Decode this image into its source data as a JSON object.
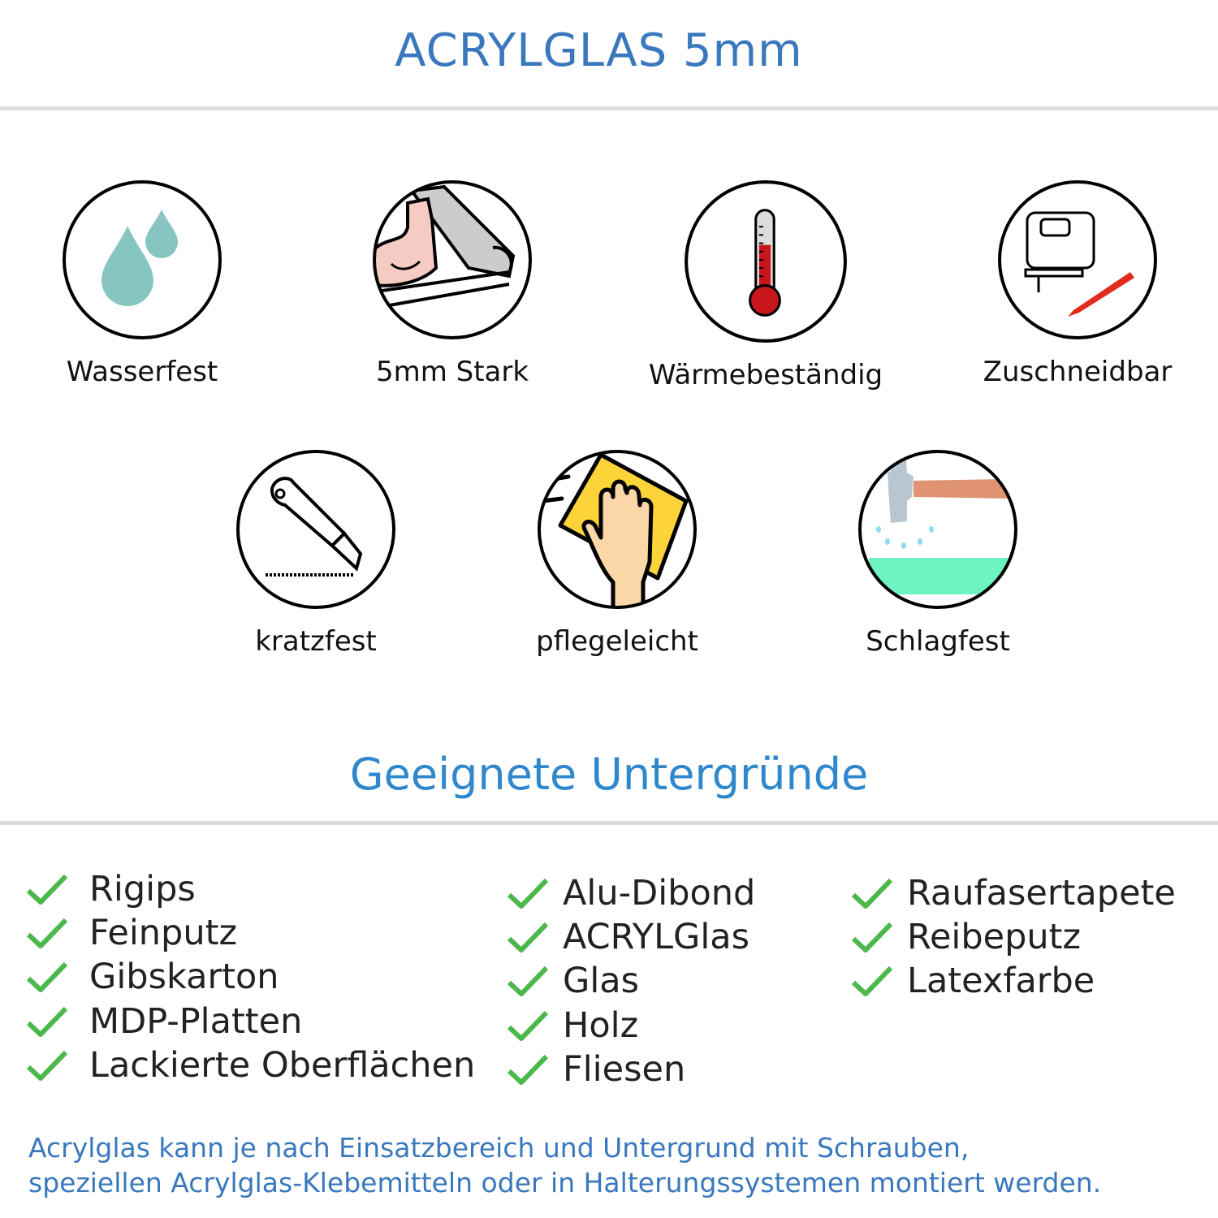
{
  "header": {
    "title": "ACRYLGLAS 5mm"
  },
  "features": [
    {
      "label": "Wasserfest",
      "icon": "water-drops-icon"
    },
    {
      "label": "5mm Stark",
      "icon": "strong-arm-icon"
    },
    {
      "label": "Wärmebeständig",
      "icon": "thermometer-icon"
    },
    {
      "label": "Zuschneidbar",
      "icon": "jigsaw-cutter-icon"
    },
    {
      "label": "kratzfest",
      "icon": "utility-knife-icon"
    },
    {
      "label": "pflegeleicht",
      "icon": "cleaning-hand-icon"
    },
    {
      "label": "Schlagfest",
      "icon": "hammer-icon"
    }
  ],
  "surfaces": {
    "title": "Geeignete Untergründe",
    "columns": [
      [
        "Rigips",
        "Feinputz",
        "Gibskarton",
        "MDP-Platten",
        "Lackierte Oberflächen"
      ],
      [
        "Alu-Dibond",
        "ACRYLGlas",
        "Glas",
        "Holz",
        "Fliesen"
      ],
      [
        "Raufasertapete",
        "Reibeputz",
        "Latexfarbe"
      ]
    ]
  },
  "footer": {
    "line1": "Acrylglas kann je nach Einsatzbereich und Untergrund mit Schrauben,",
    "line2": "speziellen Acrylglas-Klebemitteln oder in Halterungssystemen montiert werden."
  },
  "colors": {
    "title": "#3a78bd",
    "subtitle": "#2f88cc",
    "check": "#4cb84c",
    "divider": "#dcdcdc"
  }
}
